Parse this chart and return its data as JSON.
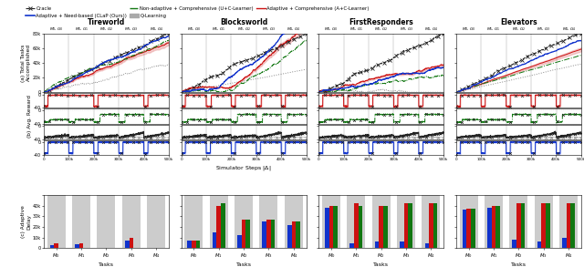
{
  "domains": [
    "Tireworld",
    "Blocksworld",
    "FirstResponders",
    "Elevators"
  ],
  "blue": "#1133cc",
  "red": "#cc1111",
  "green": "#117711",
  "gray": "#888888",
  "black": "#222222",
  "light_red": "#ffaaaa",
  "light_blue": "#aabbff",
  "task_seg_labels": [
    "$M_0,G_0$",
    "$M_1,G_1$",
    "$M_2,G_2$",
    "$M_3,G_3$",
    "$M_4,G_4$"
  ],
  "bar_data": {
    "Tireworld": {
      "tasks": [
        "$M_0$",
        "$M_1$",
        "$M_2$",
        "$M_3$",
        "$M_4$"
      ],
      "gray": [
        50000,
        50000,
        50000,
        50000,
        50000
      ],
      "blue": [
        3000,
        3500,
        500,
        7000,
        500
      ],
      "red": [
        4500,
        4500,
        500,
        10000,
        500
      ],
      "green": [
        500,
        500,
        500,
        500,
        500
      ]
    },
    "Blocksworld": {
      "tasks": [
        "$M_0$",
        "$M_1$",
        "$M_2$",
        "$M_3$",
        "$M_4$"
      ],
      "gray": [
        50000,
        50000,
        50000,
        50000,
        50000
      ],
      "blue": [
        7000,
        15000,
        12000,
        25000,
        22000
      ],
      "red": [
        7000,
        40000,
        27000,
        27000,
        25000
      ],
      "green": [
        7000,
        42000,
        27000,
        27000,
        25000
      ]
    },
    "FirstResponders": {
      "tasks": [
        "$M_0$",
        "$M_1$",
        "$M_2$",
        "$M_3$",
        "$M_4$"
      ],
      "gray": [
        50000,
        50000,
        50000,
        50000,
        50000
      ],
      "blue": [
        38000,
        5000,
        6000,
        6000,
        5000
      ],
      "red": [
        40000,
        42000,
        40000,
        42000,
        42000
      ],
      "green": [
        40000,
        40000,
        40000,
        42000,
        42000
      ]
    },
    "Elevators": {
      "tasks": [
        "$M_0$",
        "$M_1$",
        "$M_2$",
        "$M_3$",
        "$M_4$"
      ],
      "gray": [
        50000,
        50000,
        50000,
        50000,
        50000
      ],
      "blue": [
        36000,
        38000,
        8000,
        6000,
        10000
      ],
      "red": [
        37000,
        40000,
        42000,
        42000,
        42000
      ],
      "green": [
        37000,
        40000,
        42000,
        42000,
        42000
      ]
    }
  },
  "xlabel_sim": "Simulator Steps |$\\Delta$|",
  "xlabel_bar": "Tasks",
  "ylabel_a": "(a) Total Tasks\nAccomplished",
  "ylabel_b": "(b) Avg. Reward",
  "ylabel_c": "(c) Adaptive\nDelay"
}
